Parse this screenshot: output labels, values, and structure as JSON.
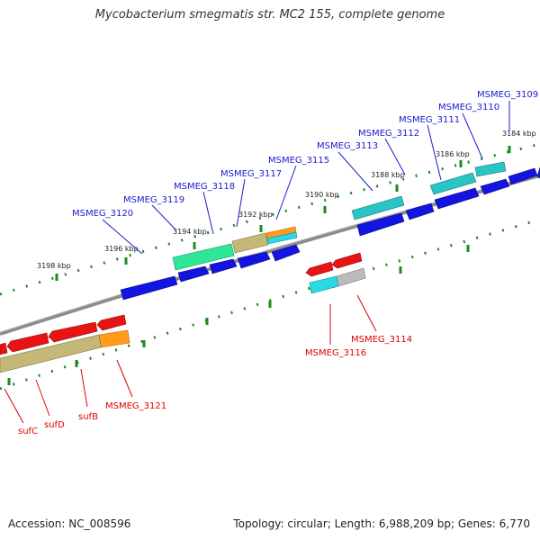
{
  "header": {
    "title": "Mycobacterium smegmatis str. MC2 155, complete genome"
  },
  "footer": {
    "accession": "Accession: NC_008596",
    "summary": "Topology: circular; Length: 6,988,209 bp; Genes: 6,770"
  },
  "colors": {
    "backbone": "#8c8c8c",
    "tick": "#1e8a1e",
    "forward_cds": "#1414e0",
    "reverse_cds": "#e81414",
    "forward_label": "#1a1ad0",
    "reverse_label": "#e00000"
  },
  "scale_labels": [
    "3184 kbp",
    "3186 kbp",
    "3188 kbp",
    "3190 kbp",
    "3192 kbp",
    "3194 kbp",
    "3196 kbp",
    "3198 kbp"
  ],
  "forward_labels": [
    "MSMEG_3109",
    "MSMEG_3110",
    "MSMEG_3111",
    "MSMEG_3112",
    "MSMEG_3113",
    "MSMEG_3115",
    "MSMEG_3117",
    "MSMEG_3118",
    "MSMEG_3119",
    "MSMEG_3120"
  ],
  "reverse_labels": [
    "MSMEG_3114",
    "MSMEG_3116",
    "MSMEG_3121",
    "sufB",
    "sufD",
    "sufC"
  ]
}
